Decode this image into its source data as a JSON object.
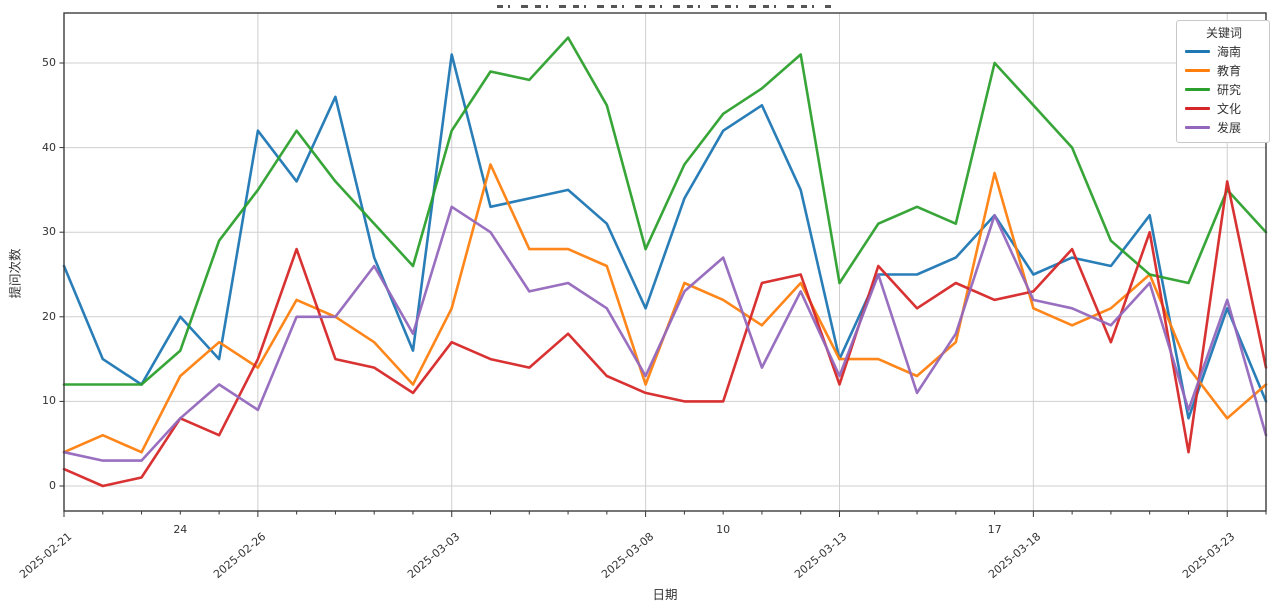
{
  "chart_data": {
    "type": "line",
    "xlabel": "日期",
    "ylabel": "提问次数",
    "legend_title": "关键词",
    "legend_position": "upper right",
    "grid": true,
    "ylim": [
      -3,
      56
    ],
    "yticks": [
      0,
      10,
      20,
      30,
      40,
      50
    ],
    "x": [
      "2025-02-21",
      "2025-02-22",
      "2025-02-23",
      "2025-02-24",
      "2025-02-25",
      "2025-02-26",
      "2025-02-27",
      "2025-02-28",
      "2025-03-01",
      "2025-03-02",
      "2025-03-03",
      "2025-03-04",
      "2025-03-05",
      "2025-03-06",
      "2025-03-07",
      "2025-03-08",
      "2025-03-09",
      "2025-03-10",
      "2025-03-11",
      "2025-03-12",
      "2025-03-13",
      "2025-03-14",
      "2025-03-15",
      "2025-03-16",
      "2025-03-17",
      "2025-03-18",
      "2025-03-19",
      "2025-03-20",
      "2025-03-21",
      "2025-03-22",
      "2025-03-23",
      "2025-03-24"
    ],
    "x_tick_labels": [
      {
        "x": "2025-02-21",
        "label": "2025-02-21",
        "rotated": true,
        "gridline": true
      },
      {
        "x": "2025-02-24",
        "label": "24",
        "rotated": false,
        "gridline": false
      },
      {
        "x": "2025-02-26",
        "label": "2025-02-26",
        "rotated": true,
        "gridline": true
      },
      {
        "x": "2025-03-03",
        "label": "2025-03-03",
        "rotated": true,
        "gridline": true
      },
      {
        "x": "2025-03-08",
        "label": "2025-03-08",
        "rotated": true,
        "gridline": true
      },
      {
        "x": "2025-03-10",
        "label": "10",
        "rotated": false,
        "gridline": false
      },
      {
        "x": "2025-03-13",
        "label": "2025-03-13",
        "rotated": true,
        "gridline": true
      },
      {
        "x": "2025-03-17",
        "label": "17",
        "rotated": false,
        "gridline": false
      },
      {
        "x": "2025-03-18",
        "label": "2025-03-18",
        "rotated": true,
        "gridline": true
      },
      {
        "x": "2025-03-23",
        "label": "2025-03-23",
        "rotated": true,
        "gridline": true
      }
    ],
    "series": [
      {
        "name": "海南",
        "color": "#1f77b4",
        "values": [
          26,
          15,
          12,
          20,
          15,
          42,
          36,
          46,
          27,
          16,
          51,
          33,
          34,
          35,
          31,
          21,
          34,
          42,
          45,
          35,
          15,
          25,
          25,
          27,
          32,
          25,
          27,
          26,
          32,
          8,
          21,
          10
        ]
      },
      {
        "name": "教育",
        "color": "#ff7f0e",
        "values": [
          4,
          6,
          4,
          13,
          17,
          14,
          22,
          20,
          17,
          12,
          21,
          38,
          28,
          28,
          26,
          12,
          24,
          22,
          19,
          24,
          15,
          15,
          13,
          17,
          37,
          21,
          19,
          21,
          25,
          14,
          8,
          12
        ]
      },
      {
        "name": "研究",
        "color": "#2ca02c",
        "values": [
          12,
          12,
          12,
          16,
          29,
          35,
          42,
          36,
          31,
          26,
          42,
          49,
          48,
          53,
          45,
          28,
          38,
          44,
          47,
          51,
          24,
          31,
          33,
          31,
          50,
          45,
          40,
          29,
          25,
          24,
          35,
          30
        ]
      },
      {
        "name": "文化",
        "color": "#d62728",
        "values": [
          2,
          0,
          1,
          8,
          6,
          15,
          28,
          15,
          14,
          11,
          17,
          15,
          14,
          18,
          13,
          11,
          10,
          10,
          24,
          25,
          12,
          26,
          21,
          24,
          22,
          23,
          28,
          17,
          30,
          4,
          36,
          14
        ]
      },
      {
        "name": "发展",
        "color": "#9467bd",
        "values": [
          4,
          3,
          3,
          8,
          12,
          9,
          20,
          20,
          26,
          18,
          33,
          30,
          23,
          24,
          21,
          13,
          23,
          27,
          14,
          23,
          13,
          25,
          11,
          18,
          32,
          22,
          21,
          19,
          24,
          9,
          22,
          6
        ]
      }
    ]
  }
}
